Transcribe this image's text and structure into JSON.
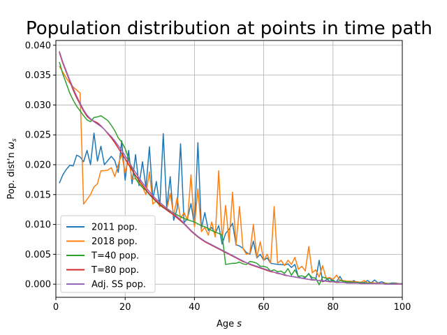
{
  "chart_data": {
    "type": "line",
    "title": "Population distribution at points in time path",
    "xlabel": "Age",
    "xlabel_italic": "s",
    "ylabel": "Pop. dist'n",
    "ylabel_symbol": "ω",
    "ylabel_subscript": "s",
    "xlim": [
      0,
      100
    ],
    "ylim": [
      -0.0022,
      0.0408
    ],
    "xticks": [
      0,
      20,
      40,
      60,
      80,
      100
    ],
    "xtick_labels": [
      "0",
      "20",
      "40",
      "60",
      "80",
      "100"
    ],
    "yticks": [
      0.0,
      0.005,
      0.01,
      0.015,
      0.02,
      0.025,
      0.03,
      0.035,
      0.04
    ],
    "ytick_labels": [
      "0.000",
      "0.005",
      "0.010",
      "0.015",
      "0.020",
      "0.025",
      "0.030",
      "0.035",
      "0.040"
    ],
    "grid": true,
    "legend_position": "lower-left",
    "x": [
      1,
      2,
      3,
      4,
      5,
      6,
      7,
      8,
      9,
      10,
      11,
      12,
      13,
      14,
      15,
      16,
      17,
      18,
      19,
      20,
      21,
      22,
      23,
      24,
      25,
      26,
      27,
      28,
      29,
      30,
      31,
      32,
      33,
      34,
      35,
      36,
      37,
      38,
      39,
      40,
      41,
      42,
      43,
      44,
      45,
      46,
      47,
      48,
      49,
      50,
      51,
      52,
      53,
      54,
      55,
      56,
      57,
      58,
      59,
      60,
      61,
      62,
      63,
      64,
      65,
      66,
      67,
      68,
      69,
      70,
      71,
      72,
      73,
      74,
      75,
      76,
      77,
      78,
      79,
      80,
      81,
      82,
      83,
      84,
      85,
      86,
      87,
      88,
      89,
      90,
      91,
      92,
      93,
      94,
      95,
      96,
      97,
      98,
      99,
      100
    ],
    "series": [
      {
        "name": "2011 pop.",
        "color": "#1f77b4",
        "values": [
          0.0169,
          0.0183,
          0.0192,
          0.0199,
          0.0198,
          0.0216,
          0.0213,
          0.0205,
          0.0224,
          0.02,
          0.0253,
          0.0206,
          0.0231,
          0.02,
          0.0207,
          0.0214,
          0.0207,
          0.0187,
          0.024,
          0.0174,
          0.0224,
          0.0168,
          0.0217,
          0.0165,
          0.0205,
          0.0162,
          0.023,
          0.0143,
          0.0172,
          0.013,
          0.0252,
          0.0127,
          0.018,
          0.0107,
          0.0126,
          0.0235,
          0.0103,
          0.011,
          0.0135,
          0.0098,
          0.0237,
          0.0093,
          0.012,
          0.009,
          0.0095,
          0.0085,
          0.0098,
          0.0067,
          0.0085,
          0.0092,
          0.0102,
          0.0066,
          0.0064,
          0.006,
          0.0053,
          0.005,
          0.0072,
          0.0044,
          0.005,
          0.004,
          0.0044,
          0.0035,
          0.0034,
          0.0033,
          0.0033,
          0.0032,
          0.0034,
          0.0028,
          0.0033,
          0.0012,
          0.001,
          0.0011,
          0.0018,
          0.0007,
          0.0007,
          0.004,
          0.0004,
          0.0007,
          0.001,
          0.0005,
          0.0004,
          0.0013,
          0.0003,
          0.0003,
          0.0002,
          0.0006,
          0.0002,
          0.0002,
          0.0003,
          0.0006,
          0.0002,
          0.0007,
          0.0002,
          0.0004,
          0.0002,
          0.0001,
          0.0002,
          0.0002,
          0.0001,
          0.0001
        ]
      },
      {
        "name": "2018 pop.",
        "color": "#ff7f0e",
        "values": [
          0.0365,
          0.0355,
          0.0345,
          0.0337,
          0.033,
          0.0325,
          0.032,
          0.0134,
          0.0142,
          0.015,
          0.0163,
          0.0168,
          0.019,
          0.019,
          0.0191,
          0.0195,
          0.018,
          0.02,
          0.0218,
          0.0186,
          0.021,
          0.0176,
          0.0177,
          0.017,
          0.0163,
          0.015,
          0.0188,
          0.0134,
          0.014,
          0.013,
          0.0132,
          0.0125,
          0.0152,
          0.0115,
          0.0145,
          0.011,
          0.012,
          0.0107,
          0.0183,
          0.0096,
          0.016,
          0.0088,
          0.0095,
          0.0082,
          0.0104,
          0.0079,
          0.019,
          0.0074,
          0.0132,
          0.007,
          0.0154,
          0.0065,
          0.013,
          0.006,
          0.005,
          0.0052,
          0.01,
          0.0045,
          0.0071,
          0.004,
          0.005,
          0.0035,
          0.013,
          0.0035,
          0.004,
          0.0031,
          0.004,
          0.0033,
          0.0045,
          0.0025,
          0.003,
          0.0022,
          0.0063,
          0.0019,
          0.0024,
          0.0012,
          0.0031,
          0.001,
          0.0011,
          0.0008,
          0.0015,
          0.0007,
          0.0006,
          0.0005,
          0.0005,
          0.0004,
          0.0004,
          0.0003,
          0.0006,
          0.0002,
          0.0003,
          0.0002,
          0.0002,
          0.0001,
          0.0002,
          0.0001,
          0.0001,
          0.0001,
          0.0001,
          0.0
        ]
      },
      {
        "name": "T=40 pop.",
        "color": "#2ca02c",
        "values": [
          0.0372,
          0.0352,
          0.0336,
          0.032,
          0.0308,
          0.0298,
          0.029,
          0.0282,
          0.0275,
          0.0272,
          0.0279,
          0.028,
          0.0282,
          0.0278,
          0.0274,
          0.0266,
          0.0257,
          0.0245,
          0.0238,
          0.0227,
          0.021,
          0.0193,
          0.0177,
          0.0168,
          0.0162,
          0.0157,
          0.015,
          0.0144,
          0.0138,
          0.0133,
          0.0128,
          0.0125,
          0.0122,
          0.0119,
          0.0116,
          0.0113,
          0.011,
          0.0108,
          0.0106,
          0.0104,
          0.0101,
          0.0098,
          0.0096,
          0.0093,
          0.009,
          0.0087,
          0.0085,
          0.0082,
          0.0033,
          0.0034,
          0.0035,
          0.0035,
          0.0037,
          0.0034,
          0.0033,
          0.0038,
          0.0037,
          0.0035,
          0.003,
          0.003,
          0.0028,
          0.0022,
          0.0024,
          0.0021,
          0.0022,
          0.0018,
          0.0026,
          0.0015,
          0.0024,
          0.0013,
          0.0014,
          0.0012,
          0.0017,
          0.0011,
          0.001,
          -0.0001,
          0.0012,
          0.001,
          0.0005,
          0.0007,
          0.0003,
          0.0006,
          0.0005,
          0.0004,
          0.0004,
          0.0003,
          0.0003,
          0.0003,
          0.0002,
          0.0002,
          0.0002,
          0.0001,
          0.0001,
          0.0001,
          0.0001,
          0.0001,
          0.0001,
          0.0,
          0.0,
          0.0
        ]
      },
      {
        "name": "T=80 pop.",
        "color": "#d62728",
        "values": [
          0.0388,
          0.037,
          0.0355,
          0.034,
          0.0325,
          0.0312,
          0.0301,
          0.029,
          0.0281,
          0.0276,
          0.0273,
          0.027,
          0.0265,
          0.0259,
          0.0252,
          0.0245,
          0.0237,
          0.0228,
          0.0219,
          0.021,
          0.02,
          0.0191,
          0.0182,
          0.0174,
          0.0166,
          0.0158,
          0.0151,
          0.0145,
          0.0139,
          0.0134,
          0.0129,
          0.0124,
          0.012,
          0.0116,
          0.0111,
          0.0106,
          0.0101,
          0.0095,
          0.0089,
          0.0084,
          0.0079,
          0.0075,
          0.0071,
          0.0068,
          0.0065,
          0.0062,
          0.0059,
          0.0056,
          0.0053,
          0.005,
          0.0047,
          0.0044,
          0.0041,
          0.0038,
          0.0036,
          0.0033,
          0.0031,
          0.0029,
          0.0027,
          0.0025,
          0.0023,
          0.0021,
          0.002,
          0.0018,
          0.0017,
          0.0015,
          0.0014,
          0.0013,
          0.0012,
          0.0011,
          0.001,
          0.0009,
          0.0008,
          0.0007,
          0.0007,
          0.0006,
          0.0005,
          0.0005,
          0.0004,
          0.0004,
          0.0003,
          0.0003,
          0.0003,
          0.0002,
          0.0002,
          0.0002,
          0.0002,
          0.0001,
          0.0001,
          0.0001,
          0.0001,
          0.0001,
          0.0001,
          0.0001,
          0.0,
          0.0,
          0.0,
          0.0,
          0.0,
          0.0
        ]
      },
      {
        "name": "Adj. SS pop.",
        "color": "#9467bd",
        "values": [
          0.039,
          0.0372,
          0.0357,
          0.0342,
          0.0328,
          0.0315,
          0.0303,
          0.0292,
          0.0283,
          0.0277,
          0.0272,
          0.0268,
          0.0264,
          0.0259,
          0.0253,
          0.0247,
          0.024,
          0.0232,
          0.0224,
          0.0215,
          0.0206,
          0.0196,
          0.0187,
          0.0178,
          0.017,
          0.0162,
          0.0155,
          0.0148,
          0.0142,
          0.0137,
          0.0132,
          0.0127,
          0.0123,
          0.0118,
          0.0113,
          0.0108,
          0.0102,
          0.0096,
          0.009,
          0.0085,
          0.008,
          0.0076,
          0.0072,
          0.0069,
          0.0066,
          0.0063,
          0.006,
          0.0057,
          0.0054,
          0.0051,
          0.0048,
          0.0045,
          0.0042,
          0.0039,
          0.0036,
          0.0034,
          0.0032,
          0.003,
          0.0028,
          0.0026,
          0.0024,
          0.0022,
          0.002,
          0.0019,
          0.0017,
          0.0016,
          0.0014,
          0.0013,
          0.0012,
          0.0011,
          0.001,
          0.0009,
          0.0008,
          0.0008,
          0.0007,
          0.0006,
          0.0006,
          0.0005,
          0.0005,
          0.0004,
          0.0004,
          0.0003,
          0.0003,
          0.0002,
          0.0002,
          0.0002,
          0.0002,
          0.0001,
          0.0001,
          0.0001,
          0.0001,
          0.0001,
          0.0001,
          0.0001,
          0.0,
          0.0,
          0.0,
          0.0,
          0.0,
          0.0
        ]
      }
    ]
  }
}
